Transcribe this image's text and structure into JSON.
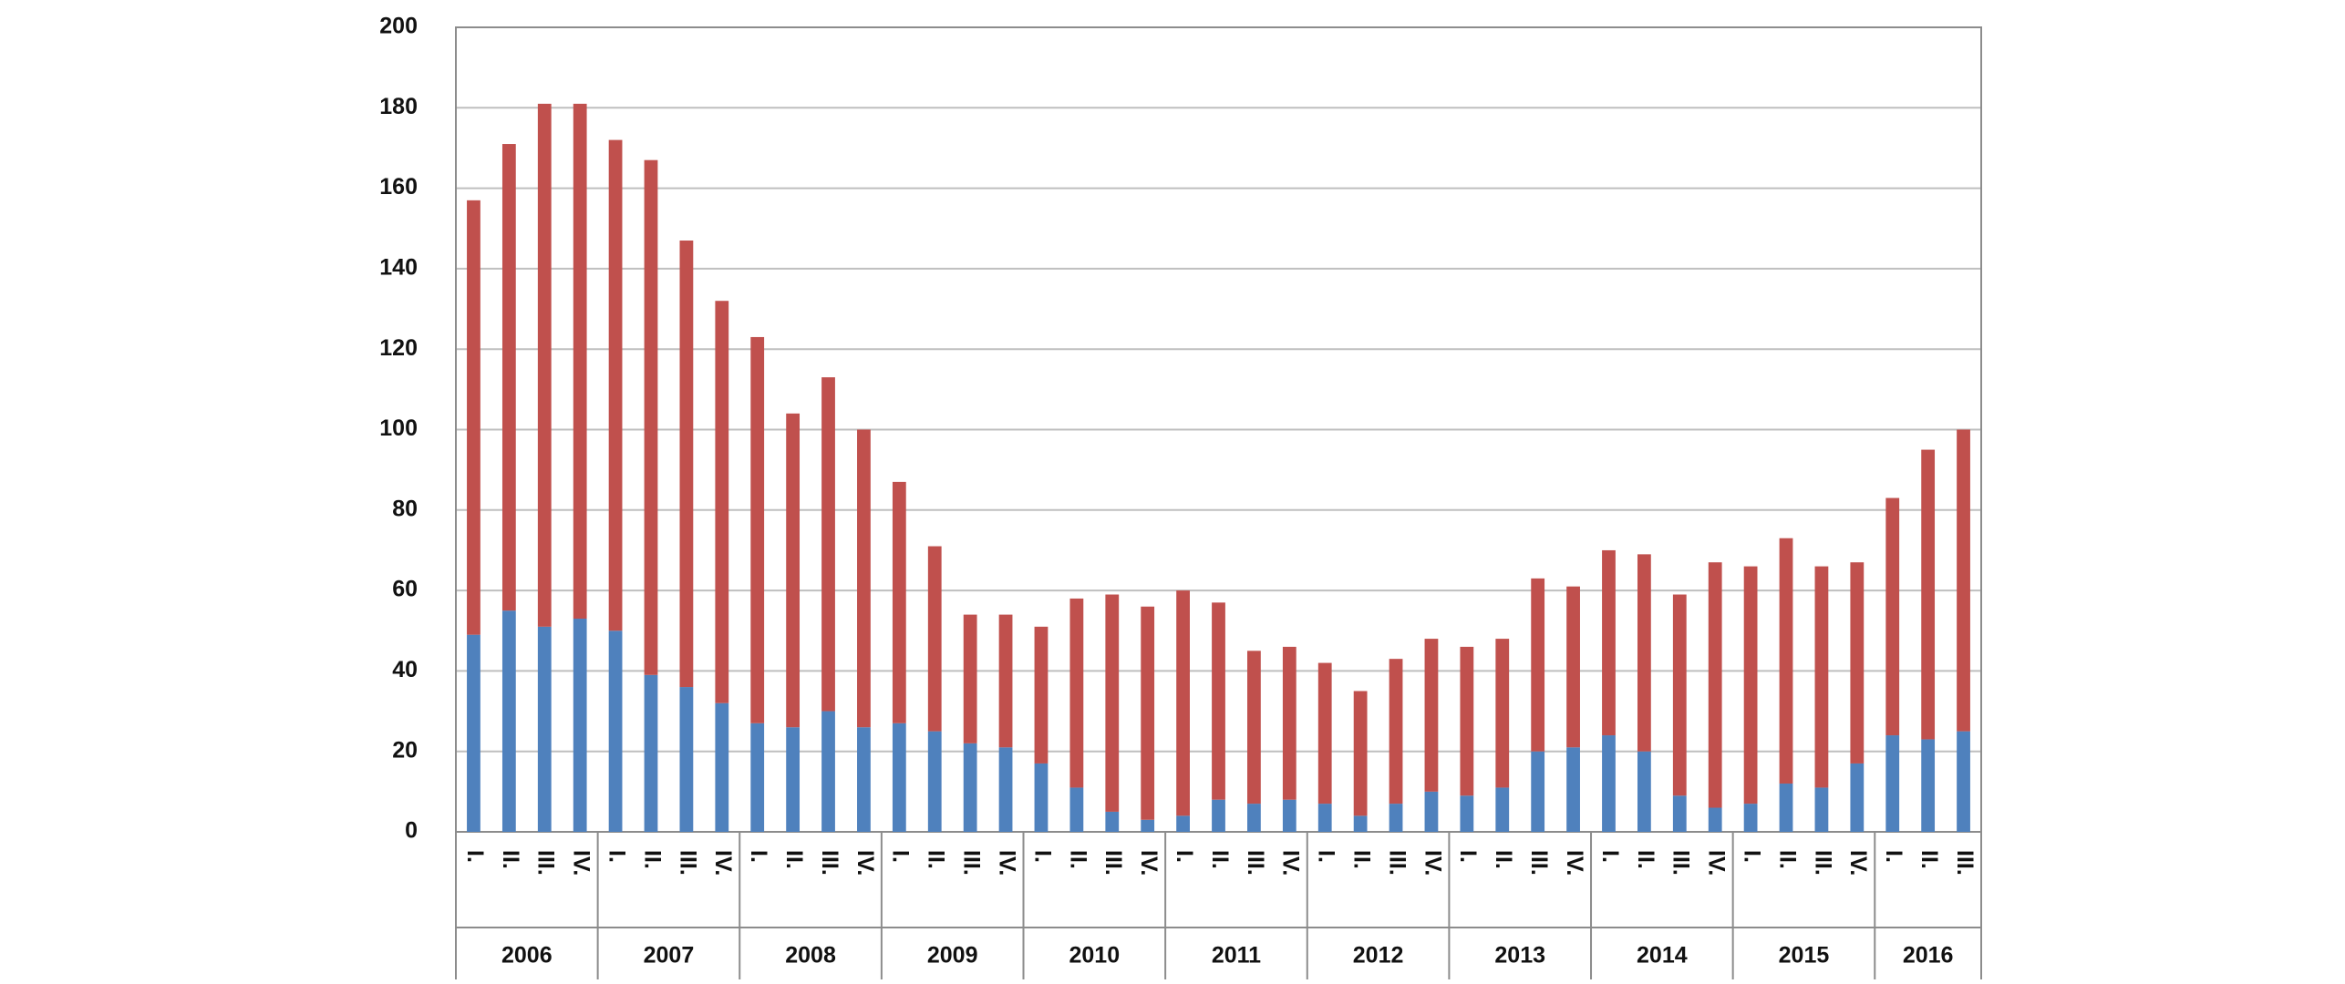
{
  "chart_data": {
    "type": "stacked_bar",
    "categories": [
      "I.",
      "II.",
      "III.",
      "IV.",
      "I.",
      "II.",
      "III.",
      "IV.",
      "I.",
      "II.",
      "III.",
      "IV.",
      "I.",
      "II.",
      "III.",
      "IV.",
      "I.",
      "II.",
      "III.",
      "IV.",
      "I.",
      "II.",
      "III.",
      "IV.",
      "I.",
      "II.",
      "III.",
      "IV.",
      "I.",
      "II.",
      "III.",
      "IV.",
      "I.",
      "II.",
      "III.",
      "IV.",
      "I.",
      "II.",
      "III.",
      "IV.",
      "I.",
      "II.",
      "III."
    ],
    "year_groups": [
      "2006",
      "2007",
      "2008",
      "2009",
      "2010",
      "2011",
      "2012",
      "2013",
      "2014",
      "2015",
      "2016"
    ],
    "series": [
      {
        "color": "#4f81bd",
        "values": [
          49,
          55,
          51,
          53,
          50,
          39,
          36,
          32,
          27,
          26,
          30,
          26,
          27,
          25,
          22,
          21,
          17,
          11,
          5,
          3,
          4,
          8,
          7,
          8,
          7,
          4,
          7,
          10,
          9,
          11,
          20,
          21,
          24,
          20,
          9,
          6,
          7,
          12,
          11,
          17,
          24,
          23,
          25
        ]
      },
      {
        "color": "#c0504d",
        "values": [
          108,
          116,
          130,
          128,
          122,
          128,
          111,
          100,
          96,
          78,
          83,
          74,
          60,
          46,
          32,
          33,
          34,
          47,
          54,
          53,
          56,
          49,
          38,
          38,
          35,
          31,
          36,
          38,
          37,
          37,
          43,
          40,
          46,
          49,
          50,
          61,
          59,
          61,
          55,
          50,
          59,
          72,
          75
        ]
      }
    ],
    "ylim": [
      0,
      200
    ],
    "yticks": [
      0,
      20,
      40,
      60,
      80,
      100,
      120,
      140,
      160,
      180,
      200
    ],
    "grid": true
  }
}
